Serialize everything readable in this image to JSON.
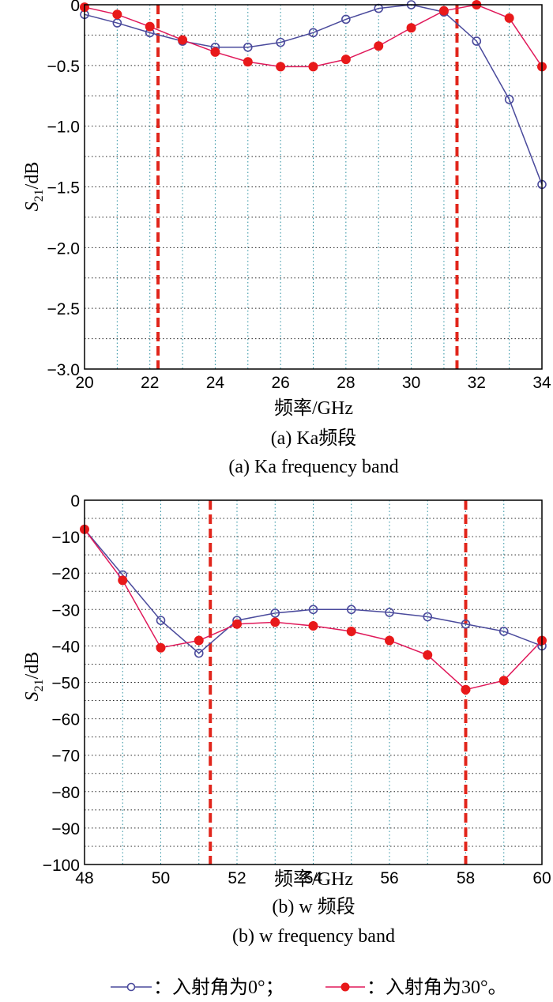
{
  "legend": {
    "entries": [
      {
        "label": "：入射角为0°；",
        "series_index": 0
      },
      {
        "label": "：入射角为30°。",
        "series_index": 1
      }
    ]
  },
  "colors": {
    "series_0": "#4a4a9c",
    "series_1": "#e0195a",
    "marker_1": "#e8191a",
    "band_edge": "#e1251b",
    "grid": "#2a8fa0"
  },
  "chart_data": [
    {
      "type": "line",
      "panel": "a",
      "ylabel": "S21/dB",
      "ylabel_main": "S",
      "ylabel_sub": "21",
      "ylabel_unit": "/dB",
      "xlabel": "频率/GHz",
      "caption_cn": "(a) Ka频段",
      "caption_en": "(a) Ka frequency band",
      "xlim": [
        20,
        34
      ],
      "ylim": [
        -3.0,
        0
      ],
      "xticks": [
        20,
        22,
        24,
        26,
        28,
        30,
        32,
        34
      ],
      "xtick_labels": [
        "20",
        "22",
        "24",
        "26",
        "28",
        "30",
        "32",
        "34"
      ],
      "yticks": [
        0,
        -0.5,
        -1.0,
        -1.5,
        -2.0,
        -2.5,
        -3.0
      ],
      "ytick_labels": [
        "0",
        "−0.5",
        "−1.0",
        "−1.5",
        "−2.0",
        "−2.5",
        "−3.0"
      ],
      "grid": true,
      "x": [
        20,
        21,
        22,
        23,
        24,
        25,
        26,
        27,
        28,
        29,
        30,
        31,
        32,
        33,
        34
      ],
      "series": [
        {
          "values": [
            -0.08,
            -0.15,
            -0.23,
            -0.3,
            -0.35,
            -0.35,
            -0.31,
            -0.23,
            -0.12,
            -0.03,
            0.0,
            -0.06,
            -0.3,
            -0.78,
            -1.48
          ]
        },
        {
          "values": [
            -0.02,
            -0.08,
            -0.18,
            -0.29,
            -0.39,
            -0.47,
            -0.51,
            -0.51,
            -0.45,
            -0.34,
            -0.19,
            -0.05,
            0.0,
            -0.11,
            -0.51
          ]
        }
      ],
      "band_edges": [
        22.25,
        31.4
      ]
    },
    {
      "type": "line",
      "panel": "b",
      "ylabel": "S21/dB",
      "ylabel_main": "S",
      "ylabel_sub": "21",
      "ylabel_unit": "/dB",
      "xlabel": "频率/GHz",
      "caption_cn": "(b) w 频段",
      "caption_en": "(b) w frequency band",
      "xlim": [
        48,
        60
      ],
      "ylim": [
        -100,
        0
      ],
      "xticks": [
        48,
        50,
        52,
        54,
        56,
        58,
        60
      ],
      "xtick_labels": [
        "48",
        "50",
        "52",
        "54",
        "56",
        "58",
        "60"
      ],
      "yticks": [
        0,
        -10,
        -20,
        -30,
        -40,
        -50,
        -60,
        -70,
        -80,
        -90,
        -100
      ],
      "ytick_labels": [
        "0",
        "−10",
        "−20",
        "−30",
        "−40",
        "−50",
        "−60",
        "−70",
        "−80",
        "−90",
        "−100"
      ],
      "grid": true,
      "x": [
        48,
        49,
        50,
        51,
        52,
        53,
        54,
        55,
        56,
        57,
        58,
        59,
        60
      ],
      "series": [
        {
          "values": [
            -8,
            -20.5,
            -33,
            -42,
            -33,
            -31,
            -30,
            -30,
            -30.8,
            -32,
            -34,
            -36,
            -40
          ]
        },
        {
          "values": [
            -8,
            -22,
            -40.5,
            -38.5,
            -34,
            -33.5,
            -34.5,
            -36,
            -38.5,
            -42.5,
            -52,
            -49.5,
            -38.5
          ]
        }
      ],
      "band_edges": [
        51.3,
        58.0
      ]
    }
  ]
}
